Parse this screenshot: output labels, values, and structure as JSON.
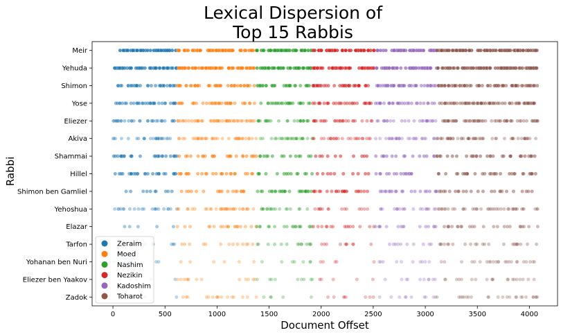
{
  "chart_data": {
    "type": "scatter",
    "title_line1": "Lexical Dispersion of",
    "title_line2": "Top 15 Rabbis",
    "xlabel": "Document Offset",
    "ylabel": "Rabbi",
    "xlim": [
      -200,
      4270
    ],
    "xticks": [
      0,
      500,
      1000,
      1500,
      2000,
      2500,
      3000,
      3500,
      4000
    ],
    "categories": [
      "Meir",
      "Yehuda",
      "Shimon",
      "Yose",
      "Eliezer",
      "Akiva",
      "Shammai",
      "Hillel",
      "Shimon ben Gamliel",
      "Yehoshua",
      "Elazar",
      "Tarfon",
      "Yohanan ben Nuri",
      "Eliezer ben Yaakov",
      "Zadok"
    ],
    "legend_position": "lower-left",
    "grid": false,
    "series": [
      {
        "name": "Zeraim",
        "color": "#1f77b4",
        "range": [
          0,
          620
        ]
      },
      {
        "name": "Moed",
        "color": "#ff7f0e",
        "range": [
          620,
          1380
        ]
      },
      {
        "name": "Nashim",
        "color": "#2ca02c",
        "range": [
          1380,
          1920
        ]
      },
      {
        "name": "Nezikin",
        "color": "#d62728",
        "range": [
          1920,
          2520
        ]
      },
      {
        "name": "Kadoshim",
        "color": "#9467bd",
        "range": [
          2520,
          3110
        ]
      },
      {
        "name": "Toharot",
        "color": "#8c564b",
        "range": [
          3110,
          4080
        ]
      }
    ],
    "rows": [
      {
        "rabbi": "Meir",
        "density": [
          0.9,
          0.9,
          1.0,
          0.9,
          0.9,
          1.0
        ],
        "alpha": 0.8
      },
      {
        "rabbi": "Yehuda",
        "density": [
          1.0,
          1.0,
          0.9,
          0.9,
          1.0,
          1.0
        ],
        "alpha": 0.7
      },
      {
        "rabbi": "Shimon",
        "density": [
          0.6,
          0.7,
          0.7,
          0.8,
          0.9,
          0.9
        ],
        "alpha": 0.55
      },
      {
        "rabbi": "Yose",
        "density": [
          0.7,
          0.6,
          0.6,
          0.6,
          0.6,
          0.9
        ],
        "alpha": 0.5
      },
      {
        "rabbi": "Eliezer",
        "density": [
          0.6,
          0.7,
          0.6,
          0.6,
          0.5,
          0.8
        ],
        "alpha": 0.4
      },
      {
        "rabbi": "Akiva",
        "density": [
          0.5,
          0.6,
          0.6,
          0.5,
          0.6,
          0.7
        ],
        "alpha": 0.35
      },
      {
        "rabbi": "Shammai",
        "density": [
          0.5,
          0.4,
          0.3,
          0.2,
          0.3,
          0.4
        ],
        "alpha": 0.55
      },
      {
        "rabbi": "Hillel",
        "density": [
          0.5,
          0.4,
          0.3,
          0.2,
          0.3,
          0.4
        ],
        "alpha": 0.55
      },
      {
        "rabbi": "Shimon ben Gamliel",
        "density": [
          0.2,
          0.3,
          0.6,
          0.5,
          0.4,
          0.3
        ],
        "alpha": 0.5
      },
      {
        "rabbi": "Yehoshua",
        "density": [
          0.4,
          0.5,
          0.4,
          0.3,
          0.4,
          0.5
        ],
        "alpha": 0.35
      },
      {
        "rabbi": "Elazar",
        "density": [
          0.1,
          0.3,
          0.4,
          0.3,
          0.3,
          0.3
        ],
        "alpha": 0.4
      },
      {
        "rabbi": "Tarfon",
        "density": [
          0.15,
          0.2,
          0.3,
          0.2,
          0.2,
          0.3
        ],
        "alpha": 0.35
      },
      {
        "rabbi": "Yohanan ben Nuri",
        "density": [
          0.15,
          0.1,
          0.15,
          0.1,
          0.2,
          0.3
        ],
        "alpha": 0.3
      },
      {
        "rabbi": "Eliezer ben Yaakov",
        "density": [
          0.1,
          0.2,
          0.2,
          0.1,
          0.2,
          0.25
        ],
        "alpha": 0.3
      },
      {
        "rabbi": "Zadok",
        "density": [
          0.1,
          0.25,
          0.1,
          0.15,
          0.2,
          0.3
        ],
        "alpha": 0.3
      }
    ]
  }
}
